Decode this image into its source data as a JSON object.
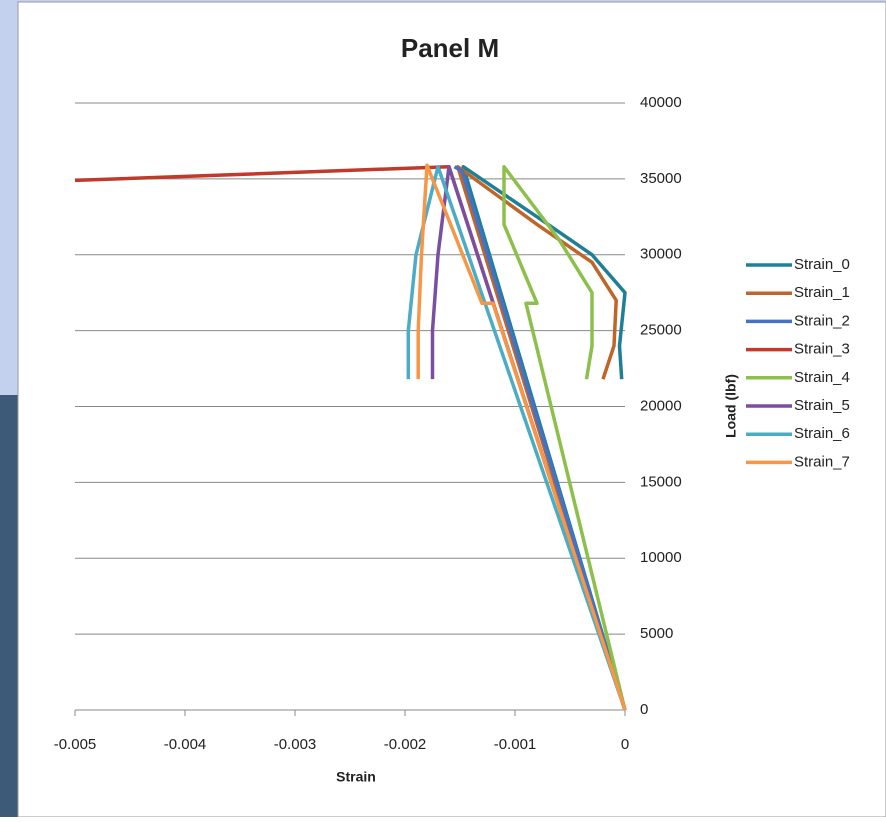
{
  "chart_data": {
    "type": "line",
    "title": "Panel M",
    "x_label": "Strain",
    "y_label": "Load (lbf)",
    "xlim": [
      -0.005,
      0
    ],
    "xticks": [
      -0.005,
      -0.004,
      -0.003,
      -0.002,
      -0.001,
      0
    ],
    "ylim": [
      0,
      40000
    ],
    "yticks": [
      0,
      5000,
      10000,
      15000,
      20000,
      25000,
      30000,
      35000,
      40000
    ],
    "grid": true,
    "y_axis_side": "right",
    "legend": "right",
    "series": [
      {
        "name": "Strain_0",
        "color": "#1f7f96",
        "x": [
          0,
          -0.00147,
          -0.0008,
          -0.0003,
          0,
          -5e-05,
          -3e-05
        ],
        "values": [
          0,
          35800,
          32500,
          30000,
          27500,
          24000,
          21800
        ]
      },
      {
        "name": "Strain_1",
        "color": "#c0652a",
        "x": [
          0,
          -0.00152,
          -0.0008,
          -0.0003,
          -8e-05,
          -0.0001,
          -0.0002
        ],
        "values": [
          0,
          35800,
          32000,
          29500,
          27000,
          24000,
          21800
        ]
      },
      {
        "name": "Strain_2",
        "color": "#4472c4",
        "x": [
          0,
          -0.00148,
          -0.00155
        ],
        "values": [
          0,
          35500,
          35800
        ]
      },
      {
        "name": "Strain_3",
        "color": "#c0392b",
        "x": [
          0,
          -0.0016,
          -0.005
        ],
        "values": [
          0,
          35800,
          34900
        ]
      },
      {
        "name": "Strain_4",
        "color": "#8cc04b",
        "x": [
          0,
          -0.0009,
          -0.0008,
          -0.0011,
          -0.0011,
          -0.0006,
          -0.0003,
          -0.0003,
          -0.00035
        ],
        "values": [
          0,
          26800,
          26800,
          32000,
          35800,
          31000,
          27500,
          24000,
          21800
        ]
      },
      {
        "name": "Strain_5",
        "color": "#7b4fa0",
        "x": [
          0,
          -0.0016,
          -0.0017,
          -0.00175,
          -0.00175
        ],
        "values": [
          0,
          35800,
          30000,
          25000,
          21800
        ]
      },
      {
        "name": "Strain_6",
        "color": "#4bacc6",
        "x": [
          0,
          -0.0017,
          -0.0019,
          -0.00197,
          -0.00197
        ],
        "values": [
          0,
          35800,
          30000,
          25000,
          21800
        ]
      },
      {
        "name": "Strain_7",
        "color": "#f79646",
        "x": [
          0,
          -0.0012,
          -0.0013,
          -0.0018,
          -0.00185,
          -0.00188,
          -0.00188
        ],
        "values": [
          0,
          26800,
          26800,
          35900,
          30000,
          25000,
          21800
        ]
      }
    ]
  }
}
